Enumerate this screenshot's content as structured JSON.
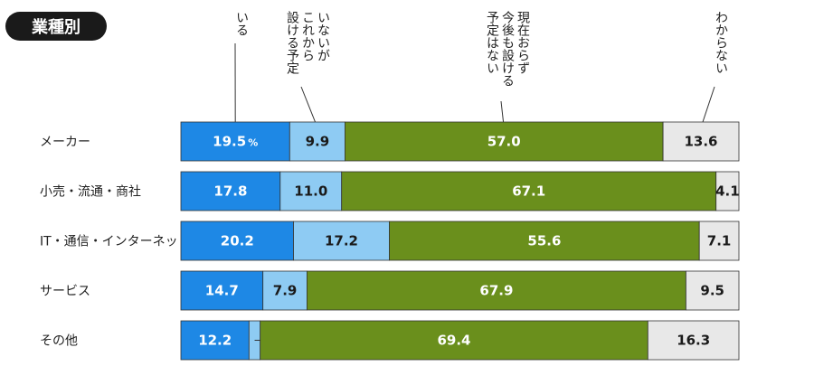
{
  "badge": {
    "label": "業種別"
  },
  "chart_data": {
    "type": "bar",
    "orientation": "horizontal",
    "stacked": true,
    "percent_unit": "%",
    "categories": [
      "メーカー",
      "小売・流通・商社",
      "IT・通信・インターネット",
      "サービス",
      "その他"
    ],
    "series": [
      {
        "name": "いる",
        "values": [
          19.5,
          17.8,
          20.2,
          14.7,
          12.2
        ]
      },
      {
        "name": "いないがこれから設ける予定",
        "values": [
          9.9,
          11.0,
          17.2,
          7.9,
          2.0
        ]
      },
      {
        "name": "現在おらず今後も設ける予定はない",
        "values": [
          57.0,
          67.1,
          55.6,
          67.9,
          69.4
        ]
      },
      {
        "name": "わからない",
        "values": [
          13.6,
          4.1,
          7.1,
          9.5,
          16.3
        ]
      }
    ],
    "legend_columns": [
      [
        "いる"
      ],
      [
        "いないが",
        "これから",
        "設ける予定"
      ],
      [
        "現在おらず",
        "今後も設ける",
        "予定はない"
      ],
      [
        "わからない"
      ]
    ],
    "colors": [
      "#1e88e5",
      "#8ecbf3",
      "#6a8f1c",
      "#e8e8e8"
    ],
    "text_colors": [
      "#ffffff",
      "#1a1a1a",
      "#ffffff",
      "#1a1a1a"
    ]
  }
}
